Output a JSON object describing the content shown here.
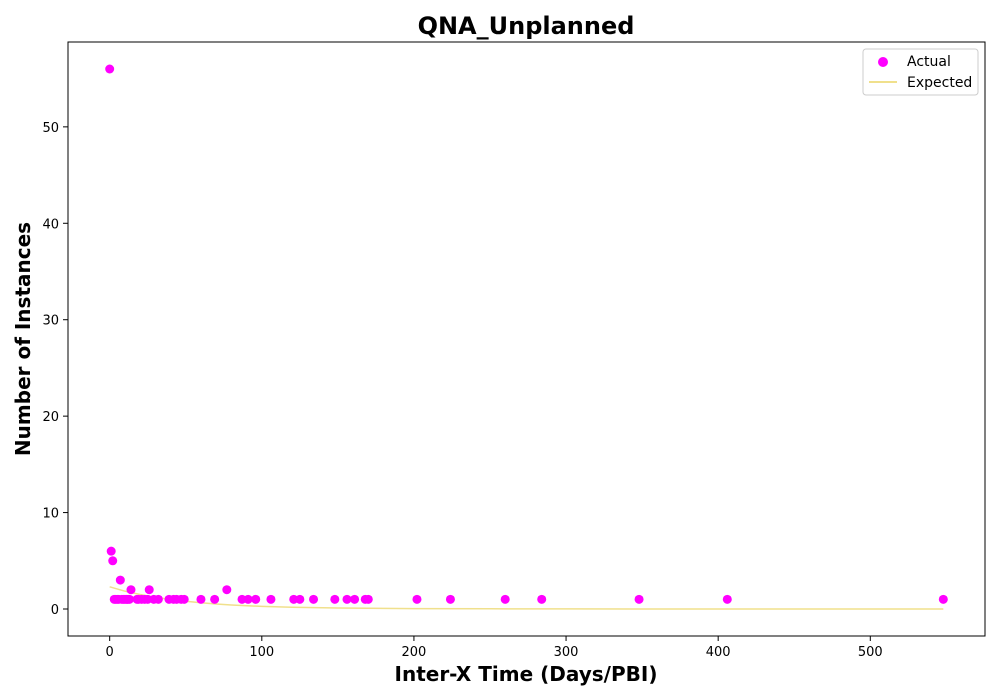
{
  "chart_data": {
    "type": "scatter",
    "title": "QNA_Unplanned",
    "xlabel": "Inter-X Time (Days/PBI)",
    "ylabel": "Number of Instances",
    "xlim": [
      -27.4,
      575.4
    ],
    "ylim": [
      -2.8,
      58.8
    ],
    "xticks": [
      0,
      100,
      200,
      300,
      400,
      500
    ],
    "yticks": [
      0,
      10,
      20,
      30,
      40,
      50
    ],
    "grid": false,
    "legend_position": "top-right",
    "series": [
      {
        "name": "Actual",
        "kind": "scatter",
        "color": "#ff00ff",
        "x": [
          0,
          1,
          2,
          3,
          4,
          5,
          6,
          7,
          8,
          9,
          10,
          11,
          12,
          13,
          14,
          18,
          19,
          21,
          23,
          25,
          26,
          29,
          32,
          39,
          42,
          44,
          47,
          49,
          60,
          69,
          77,
          87,
          91,
          96,
          106,
          121,
          125,
          134,
          148,
          156,
          161,
          168,
          170,
          202,
          224,
          260,
          284,
          348,
          406,
          548
        ],
        "y": [
          56,
          6,
          5,
          1,
          1,
          1,
          1,
          3,
          1,
          1,
          1,
          1,
          1,
          1,
          2,
          1,
          1,
          1,
          1,
          1,
          2,
          1,
          1,
          1,
          1,
          1,
          1,
          1,
          1,
          1,
          2,
          1,
          1,
          1,
          1,
          1,
          1,
          1,
          1,
          1,
          1,
          1,
          1,
          1,
          1,
          1,
          1,
          1,
          1,
          1
        ]
      },
      {
        "name": "Expected",
        "kind": "line",
        "color": "#f0e08c",
        "x": [
          0,
          10,
          20,
          30,
          40,
          50,
          60,
          70,
          80,
          100,
          120,
          150,
          200,
          250,
          300,
          400,
          548
        ],
        "y": [
          2.3,
          1.85,
          1.5,
          1.22,
          0.98,
          0.8,
          0.65,
          0.52,
          0.42,
          0.27,
          0.18,
          0.1,
          0.04,
          0.02,
          0.01,
          0.0,
          0.0
        ]
      }
    ]
  }
}
